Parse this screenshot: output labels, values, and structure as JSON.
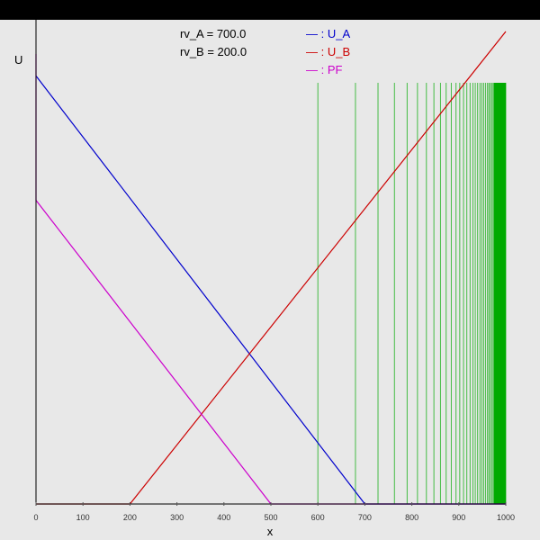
{
  "chart_data": {
    "type": "line",
    "xlabel": "x",
    "ylabel": "U",
    "params": [
      "rv_A = 700.0",
      "rv_B = 200.0"
    ],
    "xlim": [
      0,
      1000
    ],
    "x_ticks": [
      0,
      100,
      200,
      300,
      400,
      500,
      600,
      700,
      800,
      900,
      1000
    ],
    "series": [
      {
        "name": "U_A",
        "legend_label": "— : U_A",
        "color": "#0000cc",
        "points": [
          [
            0,
            950
          ],
          [
            1,
            950
          ],
          [
            700,
            0
          ],
          [
            1000,
            0
          ]
        ]
      },
      {
        "name": "U_B",
        "legend_label": "— : U_B",
        "color": "#cc0000",
        "points": [
          [
            0,
            0
          ],
          [
            200,
            0
          ],
          [
            1000,
            1050
          ]
        ]
      },
      {
        "name": "PF",
        "legend_label": "— : PF",
        "color": "#cc00cc",
        "points": [
          [
            0,
            1000
          ],
          [
            0,
            675
          ],
          [
            500,
            0
          ],
          [
            1000,
            0
          ]
        ]
      }
    ],
    "ylim": [
      0,
      1000
    ],
    "vertical_lines": {
      "color": "#00aa00",
      "x": [
        600,
        680,
        728,
        763,
        790,
        812,
        831,
        847,
        861,
        873,
        884,
        894,
        902,
        910,
        917,
        924,
        930,
        935,
        940,
        945,
        949,
        953,
        957,
        961,
        964,
        967,
        970,
        973,
        975,
        978,
        980,
        982,
        984,
        986,
        988,
        990,
        992,
        994,
        996,
        998,
        1000
      ]
    }
  }
}
